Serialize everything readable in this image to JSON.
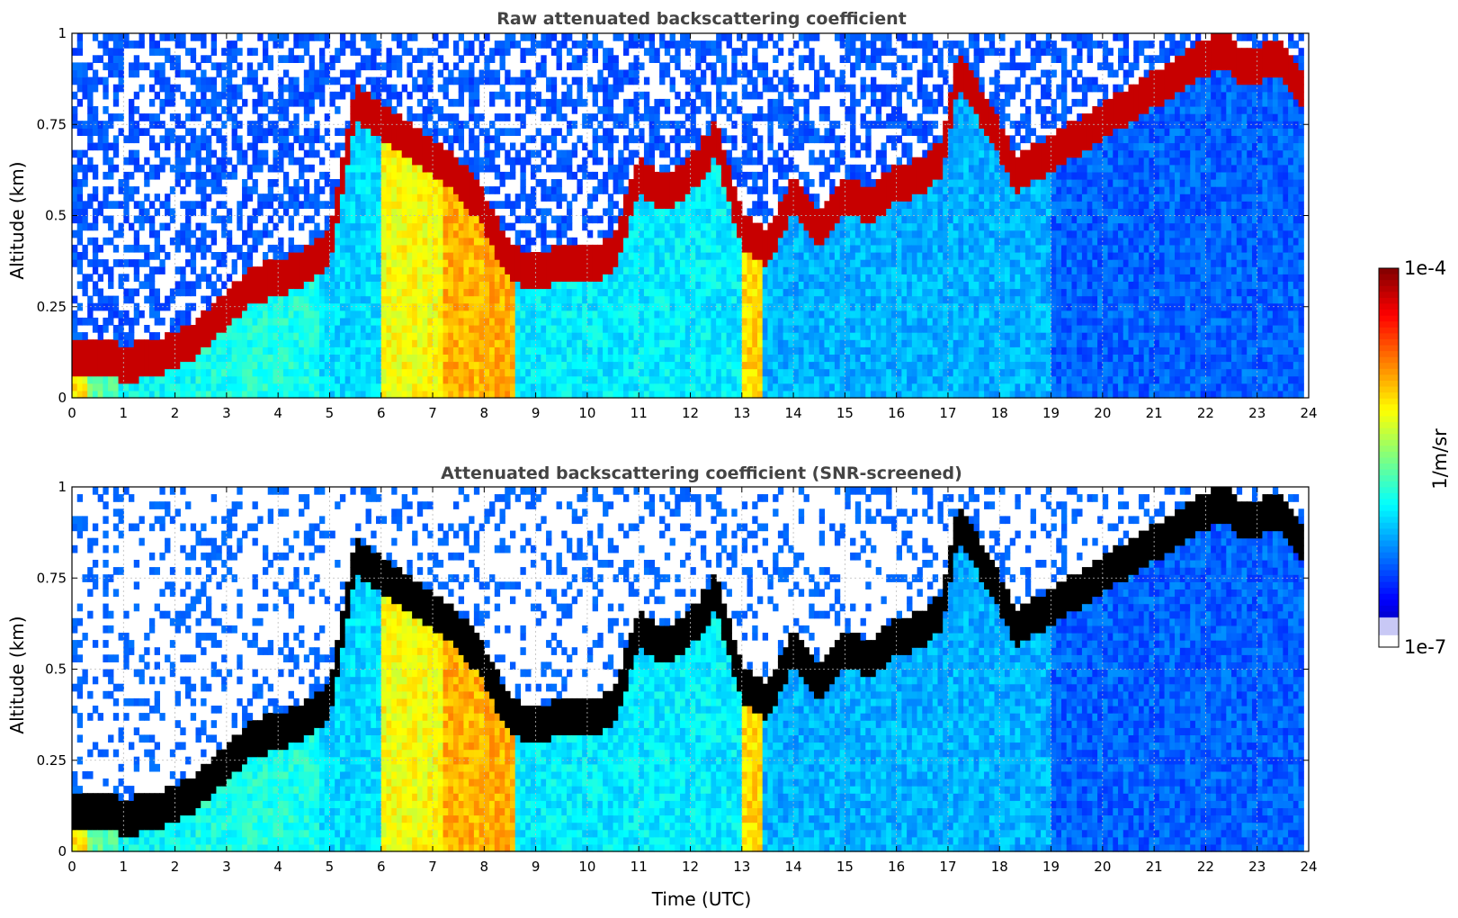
{
  "figure": {
    "xlabel": "Time (UTC)",
    "colorbar": {
      "label": "1/m/sr",
      "max_label": "1e-4",
      "min_label": "1e-7",
      "range": [
        1e-07,
        0.0001
      ],
      "scale": "log",
      "colormap": "jet",
      "low_color": "#ffffff"
    }
  },
  "chart_data": [
    {
      "type": "heatmap",
      "title": "Raw attenuated backscattering coefficient",
      "xlabel": "",
      "ylabel": "Altitude (km)",
      "xlim": [
        0,
        24
      ],
      "ylim": [
        0,
        1
      ],
      "grid": true,
      "xticks": [
        0,
        1,
        2,
        3,
        4,
        5,
        6,
        7,
        8,
        9,
        10,
        11,
        12,
        13,
        14,
        15,
        16,
        17,
        18,
        19,
        20,
        21,
        22,
        23,
        24
      ],
      "yticks": [
        0,
        0.25,
        0.5,
        0.75,
        1
      ],
      "ytick_labels": [
        "0",
        "0.25",
        "0.5",
        "0.75",
        "1"
      ],
      "screened": false,
      "cloud_base_km": {
        "time_utc": [
          0.75,
          1.0,
          1.5,
          2.0,
          2.4,
          3.5,
          4.0,
          4.5,
          5.0,
          5.5,
          7.5,
          8.0,
          8.5,
          9.0,
          9.5,
          10.0,
          10.5,
          11.0,
          11.5,
          12.0,
          12.5,
          13.0,
          13.5,
          14.0,
          14.5,
          15.0,
          15.5,
          16.0,
          16.5,
          16.9,
          17.2,
          17.6,
          18.0,
          18.3,
          22.3,
          22.7,
          23.5,
          23.8
        ],
        "altitude_km": [
          0.1,
          0.08,
          0.1,
          0.12,
          0.15,
          0.3,
          0.32,
          0.35,
          0.4,
          0.8,
          0.6,
          0.5,
          0.36,
          0.33,
          0.36,
          0.35,
          0.38,
          0.6,
          0.55,
          0.6,
          0.7,
          0.45,
          0.4,
          0.55,
          0.45,
          0.55,
          0.52,
          0.58,
          0.6,
          0.65,
          0.9,
          0.8,
          0.7,
          0.6,
          0.95,
          0.9,
          0.92,
          0.85
        ]
      }
    },
    {
      "type": "heatmap",
      "title": "Attenuated backscattering coefficient (SNR-screened)",
      "xlabel": "Time (UTC)",
      "ylabel": "Altitude (km)",
      "xlim": [
        0,
        24
      ],
      "ylim": [
        0,
        1
      ],
      "grid": true,
      "xticks": [
        0,
        1,
        2,
        3,
        4,
        5,
        6,
        7,
        8,
        9,
        10,
        11,
        12,
        13,
        14,
        15,
        16,
        17,
        18,
        19,
        20,
        21,
        22,
        23,
        24
      ],
      "yticks": [
        0,
        0.25,
        0.5,
        0.75,
        1
      ],
      "ytick_labels": [
        "0",
        "0.25",
        "0.5",
        "0.75",
        "1"
      ],
      "screened": true,
      "saturated_color": "#000000",
      "cloud_base_km": {
        "time_utc": [
          0.75,
          1.0,
          1.5,
          2.0,
          2.4,
          3.5,
          4.0,
          4.5,
          5.0,
          5.5,
          7.5,
          8.0,
          8.5,
          9.0,
          9.5,
          10.0,
          10.5,
          11.0,
          11.5,
          12.0,
          12.5,
          13.0,
          13.5,
          14.0,
          14.5,
          15.0,
          15.5,
          16.0,
          16.5,
          16.9,
          17.2,
          17.6,
          18.0,
          18.3,
          22.3,
          22.7,
          23.5,
          23.8
        ],
        "altitude_km": [
          0.1,
          0.08,
          0.1,
          0.12,
          0.15,
          0.3,
          0.32,
          0.35,
          0.4,
          0.8,
          0.6,
          0.5,
          0.36,
          0.33,
          0.36,
          0.35,
          0.38,
          0.6,
          0.55,
          0.6,
          0.7,
          0.45,
          0.4,
          0.55,
          0.45,
          0.55,
          0.52,
          0.58,
          0.6,
          0.65,
          0.9,
          0.8,
          0.7,
          0.6,
          0.95,
          0.9,
          0.92,
          0.85
        ]
      }
    }
  ]
}
